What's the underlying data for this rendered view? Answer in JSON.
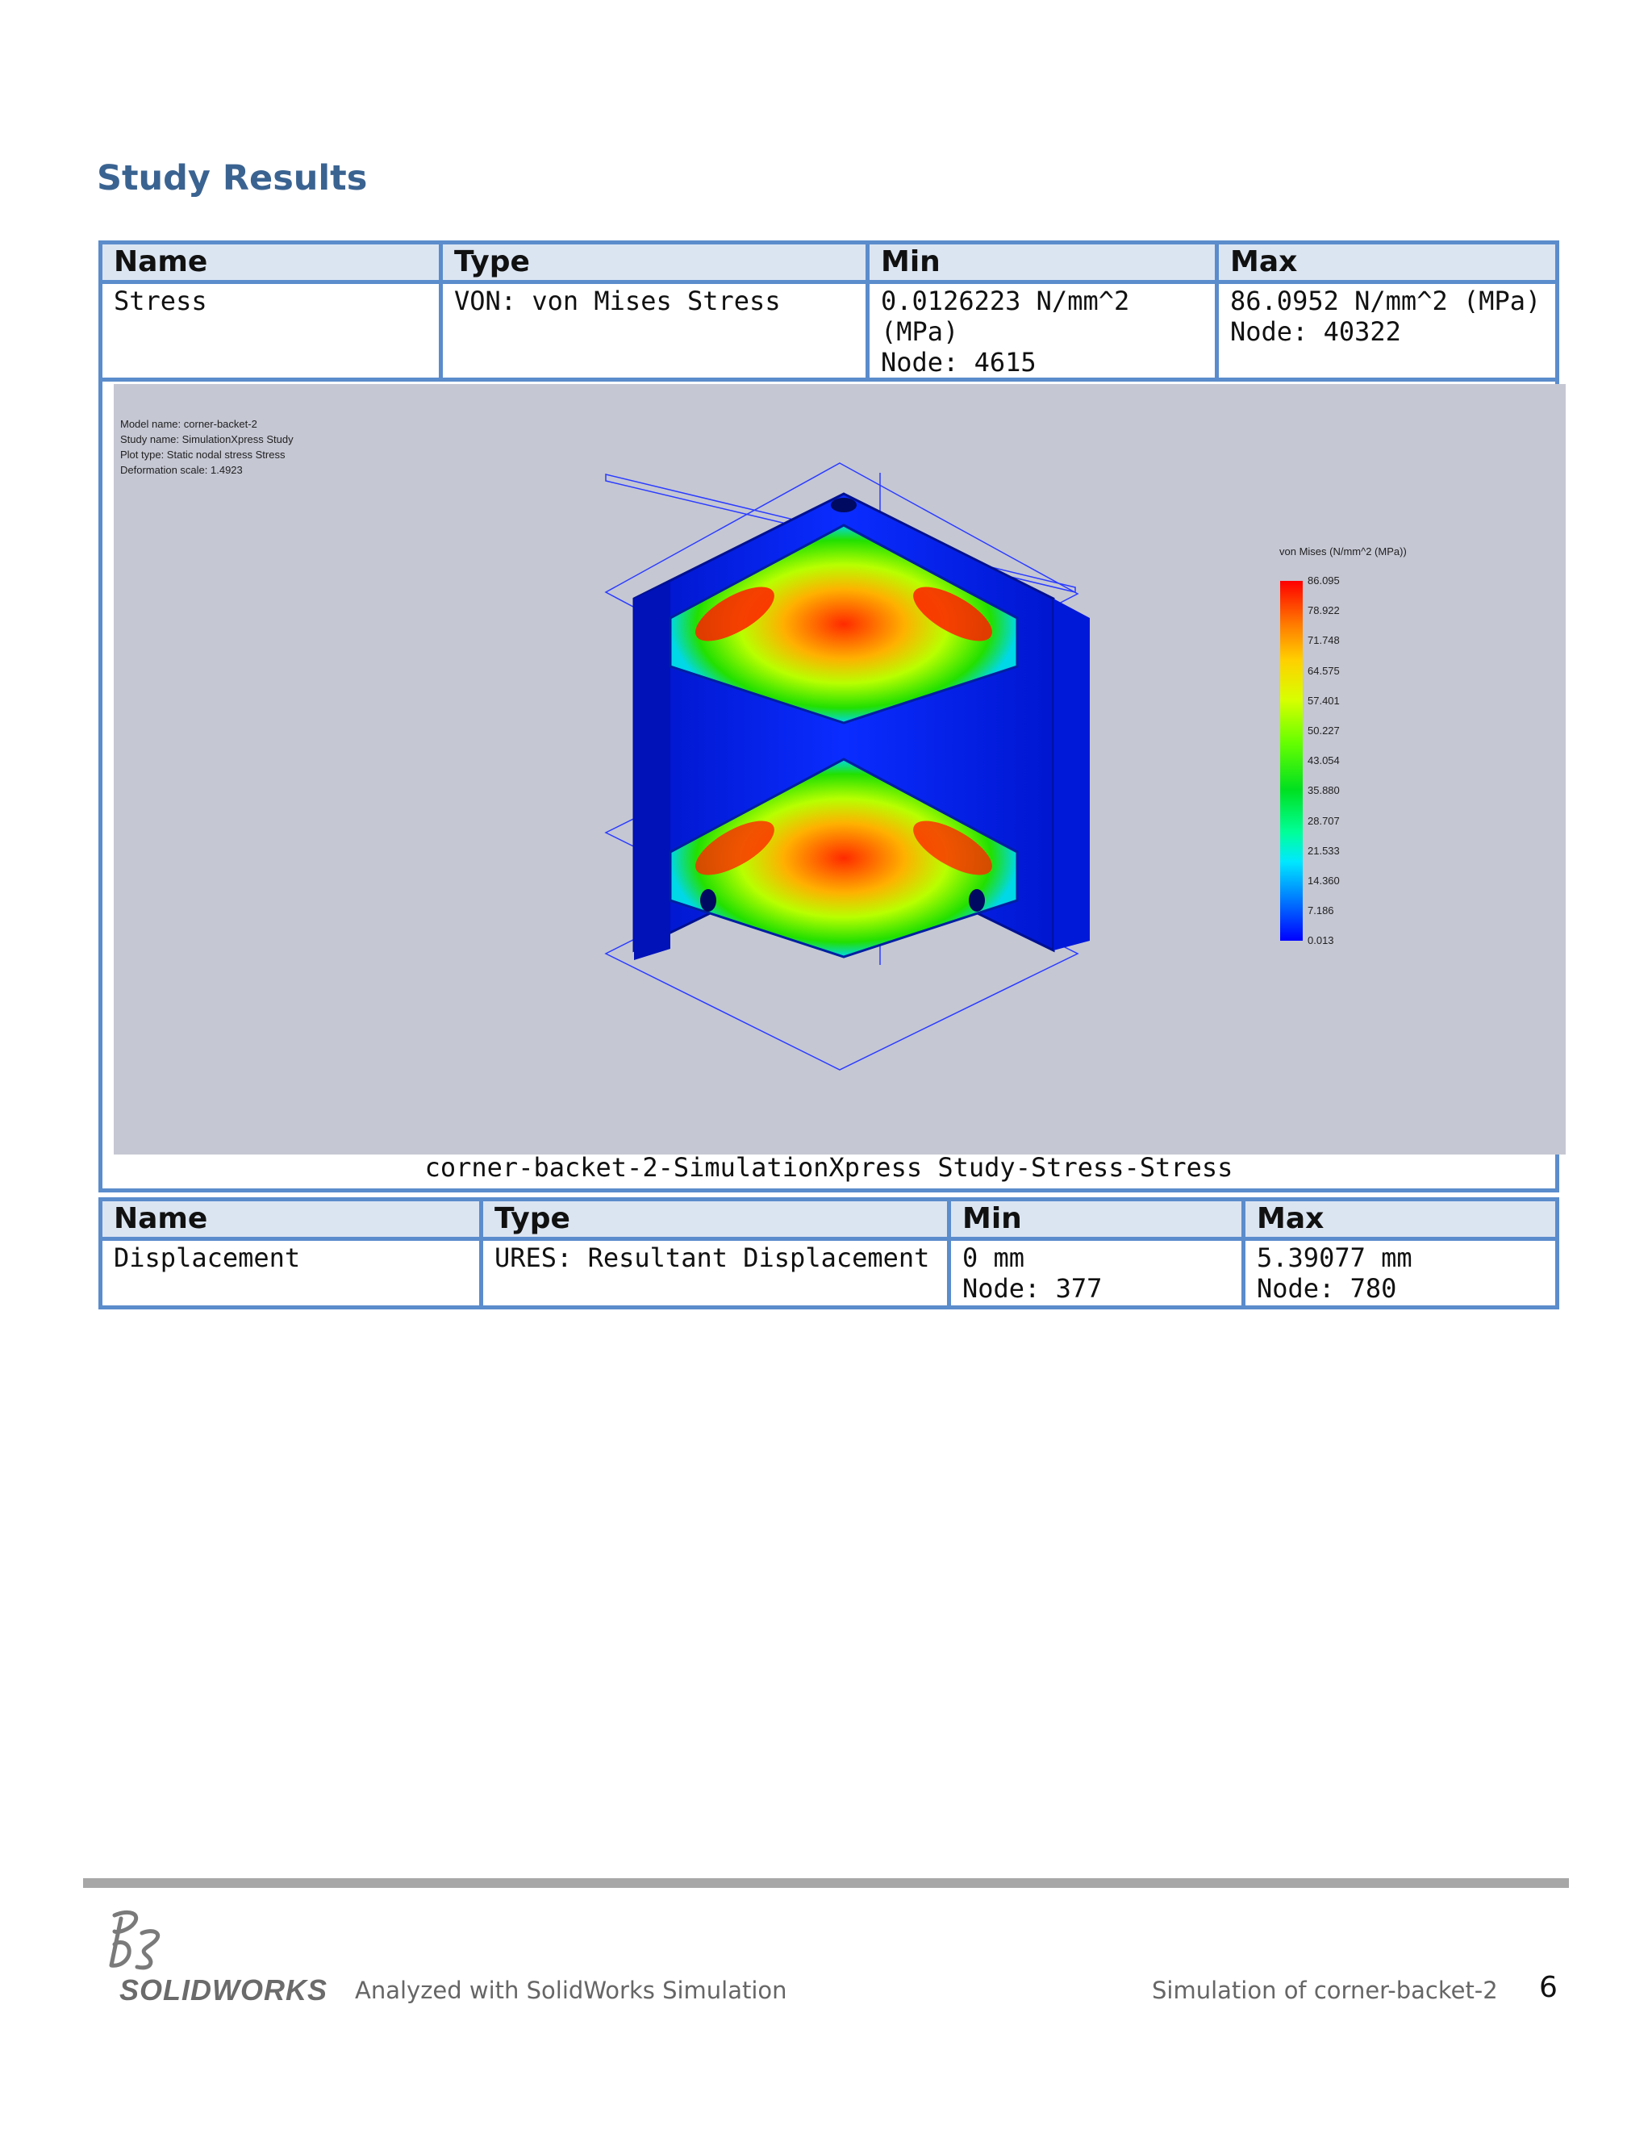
{
  "page": {
    "title": "Study Results",
    "number": "6"
  },
  "stress_table": {
    "headers": [
      "Name",
      "Type",
      "Min",
      "Max"
    ],
    "row": {
      "name": "Stress",
      "type": "VON: von Mises Stress",
      "min_value": "0.0126223 N/mm^2 (MPa)",
      "min_node": "Node: 4615",
      "max_value": "86.0952 N/mm^2 (MPa)",
      "max_node": "Node: 40322"
    },
    "plot": {
      "meta": [
        "Model name: corner-backet-2",
        "Study name: SimulationXpress Study",
        "Plot type: Static nodal stress Stress",
        "Deformation scale: 1.4923"
      ],
      "legend_title": "von Mises (N/mm^2 (MPa))",
      "legend_values": [
        "86.095",
        "78.922",
        "71.748",
        "64.575",
        "57.401",
        "50.227",
        "43.054",
        "35.880",
        "28.707",
        "21.533",
        "14.360",
        "7.186",
        "0.013"
      ]
    },
    "caption": "corner-backet-2-SimulationXpress Study-Stress-Stress"
  },
  "displacement_table": {
    "headers": [
      "Name",
      "Type",
      "Min",
      "Max"
    ],
    "row": {
      "name": "Displacement",
      "type": "URES: Resultant Displacement",
      "min_value": "0 mm",
      "min_node": "Node: 377",
      "max_value": "5.39077 mm",
      "max_node": "Node: 780"
    }
  },
  "footer": {
    "logo_text": "SOLIDWORKS",
    "left": "Analyzed with SolidWorks Simulation",
    "right": "Simulation of corner-backet-2"
  }
}
